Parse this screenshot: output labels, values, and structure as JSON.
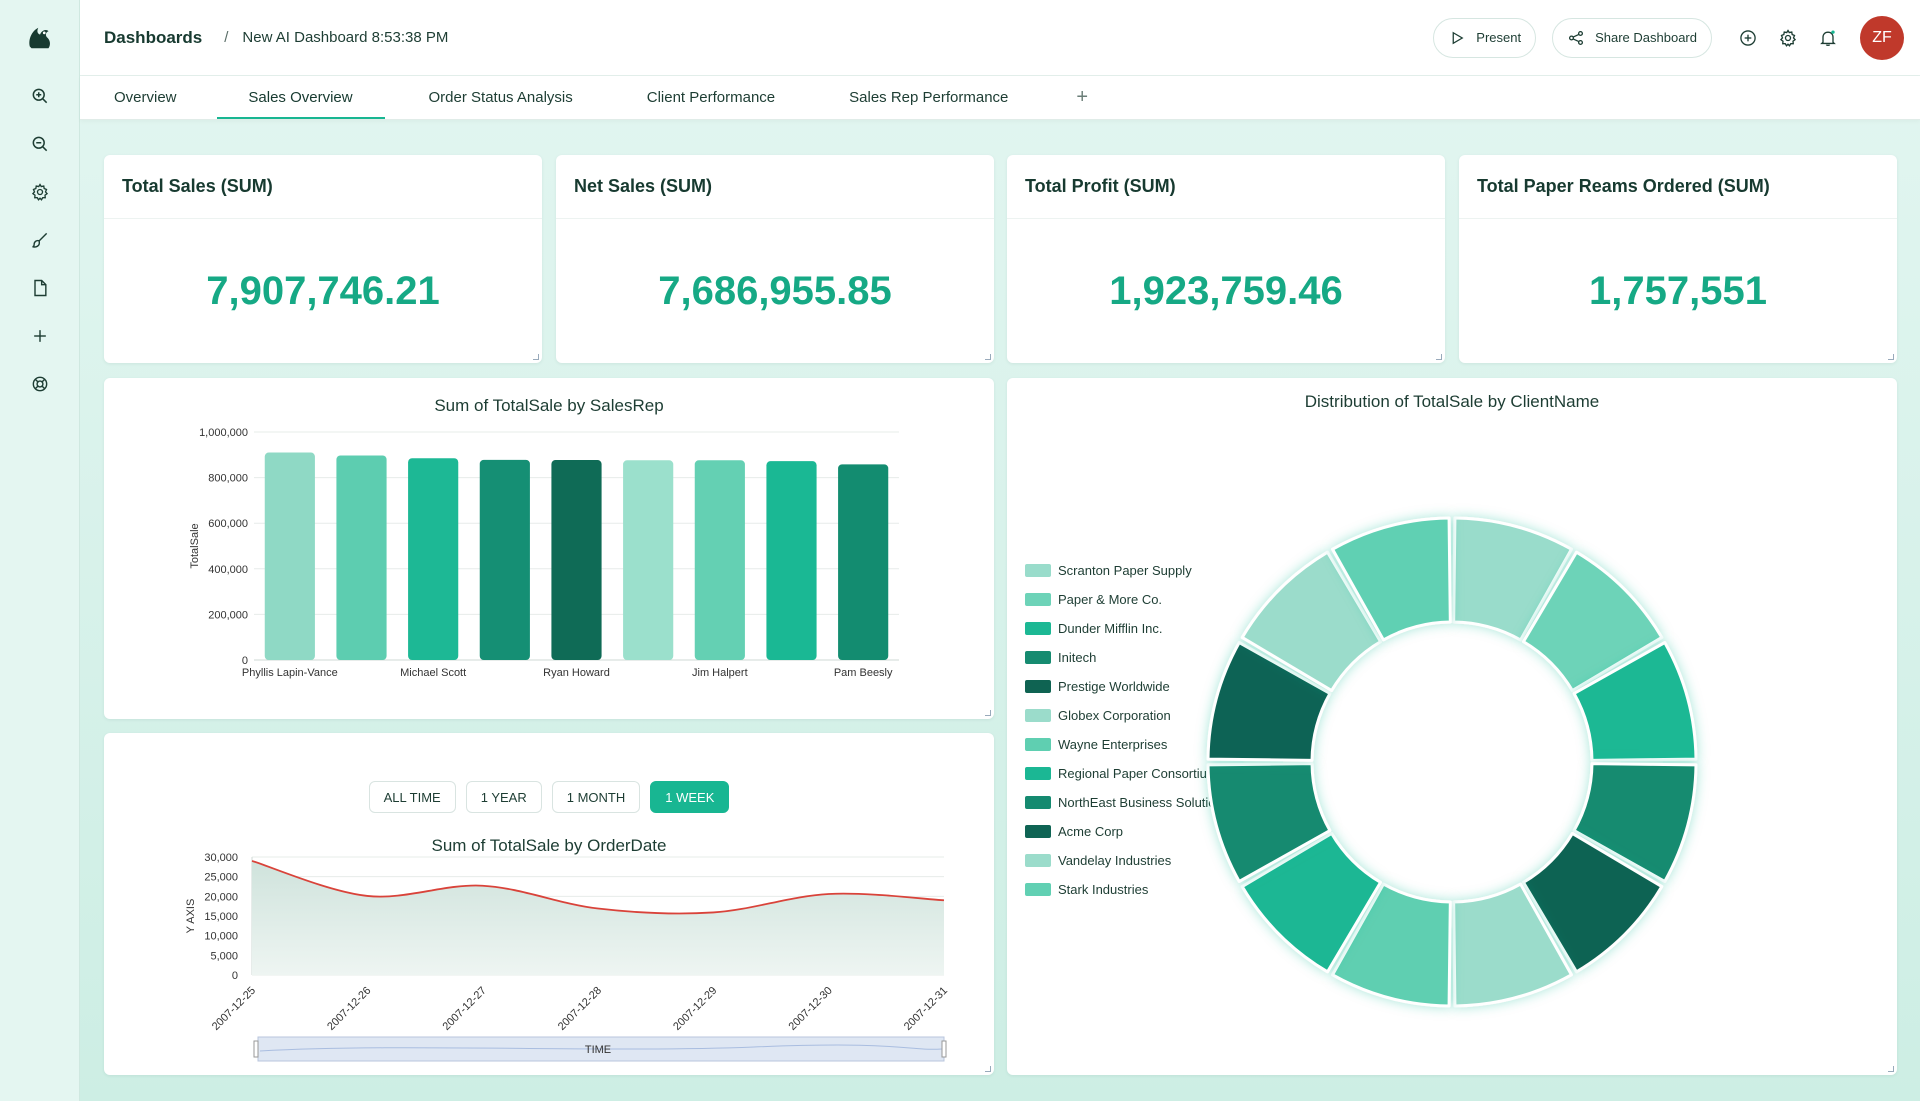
{
  "breadcrumb": {
    "root": "Dashboards",
    "separator": "/",
    "current": "New AI Dashboard 8:53:38 PM"
  },
  "topbar": {
    "present_label": "Present",
    "share_label": "Share Dashboard",
    "avatar_initials": "ZF",
    "avatar_color": "#c0392b"
  },
  "sidebar": {
    "icons": [
      "zoom-in-icon",
      "zoom-out-icon",
      "gear-icon",
      "brush-icon",
      "file-icon",
      "plus-icon",
      "help-wheel-icon"
    ]
  },
  "tabs": [
    {
      "label": "Overview",
      "active": false
    },
    {
      "label": "Sales Overview",
      "active": true
    },
    {
      "label": "Order Status Analysis",
      "active": false
    },
    {
      "label": "Client Performance",
      "active": false
    },
    {
      "label": "Sales Rep Performance",
      "active": false
    }
  ],
  "kpis": [
    {
      "title": "Total Sales (SUM)",
      "value": "7,907,746.21"
    },
    {
      "title": "Net Sales (SUM)",
      "value": "7,686,955.85"
    },
    {
      "title": "Total Profit (SUM)",
      "value": "1,923,759.46"
    },
    {
      "title": "Total Paper Reams Ordered (SUM)",
      "value": "1,757,551"
    }
  ],
  "accent_color": "#18b692",
  "range_buttons": [
    {
      "label": "ALL TIME",
      "active": false
    },
    {
      "label": "1 YEAR",
      "active": false
    },
    {
      "label": "1 MONTH",
      "active": false
    },
    {
      "label": "1 WEEK",
      "active": true
    }
  ],
  "chart_data": [
    {
      "type": "bar",
      "title": "Sum of TotalSale by SalesRep",
      "ylabel": "TotalSale",
      "ylim": [
        0,
        1000000
      ],
      "yticks": [
        "0",
        "200,000",
        "400,000",
        "600,000",
        "800,000",
        "1,000,000"
      ],
      "categories": [
        "Phyllis Lapin-Vance",
        "",
        "Michael Scott",
        "",
        "Ryan Howard",
        "",
        "Jim Halpert",
        "",
        "Pam Beesly"
      ],
      "values": [
        910000,
        897000,
        885000,
        878000,
        877000,
        876000,
        876000,
        872000,
        858000
      ],
      "colors": [
        "#8fd9c5",
        "#5dcdb0",
        "#1db895",
        "#158f74",
        "#0f6b56",
        "#9be0cc",
        "#64d0b3",
        "#1ab894",
        "#138c70"
      ],
      "grid": true
    },
    {
      "type": "area",
      "title": "Sum of TotalSale by OrderDate",
      "ylabel": "Y AXIS",
      "xlabel": "TIME",
      "ylim": [
        0,
        30000
      ],
      "yticks": [
        "0",
        "5,000",
        "10,000",
        "15,000",
        "20,000",
        "25,000",
        "30,000"
      ],
      "x": [
        "2007-12-25",
        "2007-12-26",
        "2007-12-27",
        "2007-12-28",
        "2007-12-29",
        "2007-12-30",
        "2007-12-31"
      ],
      "values": [
        29000,
        20100,
        22700,
        16900,
        15900,
        20600,
        19000
      ],
      "line_color": "#d9433a"
    },
    {
      "type": "pie",
      "variant": "donut",
      "title": "Distribution of TotalSale by ClientName",
      "legend_position": "left",
      "slices": [
        {
          "name": "Scranton Paper Supply",
          "value": 1,
          "color": "#99dccb"
        },
        {
          "name": "Paper & More Co.",
          "value": 1,
          "color": "#6dd3b8"
        },
        {
          "name": "Dunder Mifflin Inc.",
          "value": 1,
          "color": "#1cb894"
        },
        {
          "name": "Initech",
          "value": 1,
          "color": "#168b70"
        },
        {
          "name": "Prestige Worldwide",
          "value": 1,
          "color": "#0f6352"
        },
        {
          "name": "Globex Corporation",
          "value": 1,
          "color": "#9bdccb"
        },
        {
          "name": "Wayne Enterprises",
          "value": 1,
          "color": "#5fcfb1"
        },
        {
          "name": "Regional Paper Consortium",
          "value": 1,
          "color": "#1bb794"
        },
        {
          "name": "NorthEast Business Solutions",
          "value": 1,
          "color": "#158a70"
        },
        {
          "name": "Acme Corp",
          "value": 1,
          "color": "#0f6454"
        },
        {
          "name": "Vandelay Industries",
          "value": 1,
          "color": "#9bdccb"
        },
        {
          "name": "Stark Industries",
          "value": 1,
          "color": "#61d0b3"
        }
      ]
    }
  ]
}
